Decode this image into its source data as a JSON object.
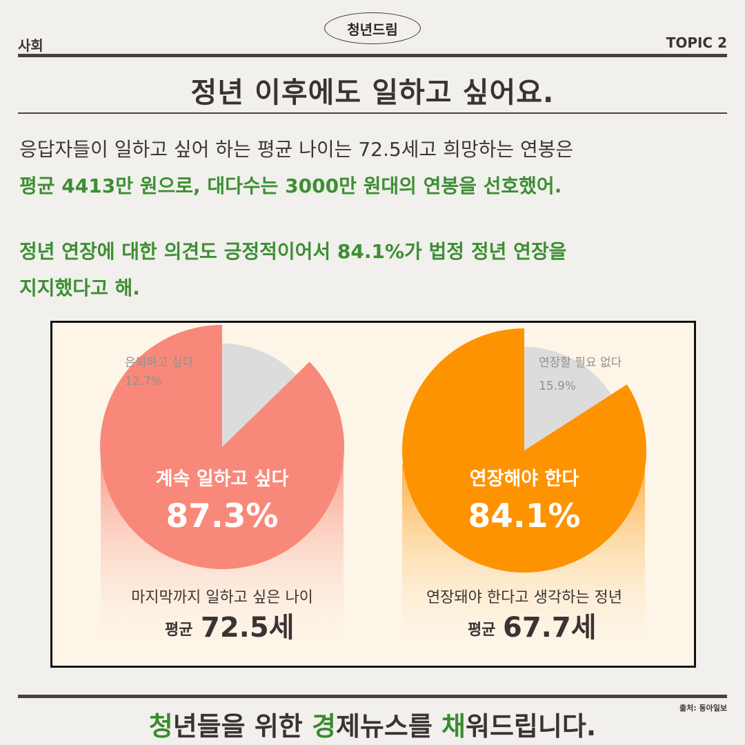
{
  "header": {
    "brand": "청년드림",
    "category": "사회",
    "topic": "TOPIC 2"
  },
  "title": "정년 이후에도 일하고 싶어요.",
  "body": {
    "line1": "응답자들이 일하고 싶어 하는 평균 나이는 72.5세고 희망하는 연봉은",
    "line2": "평균 4413만 원으로, 대다수는 3000만 원대의 연봉을 선호했어.",
    "line3": "정년 연장에 대한 의견도 긍정적이어서 84.1%가 법정 정년 연장을",
    "line4": "지지했다고 해."
  },
  "chart_data": [
    {
      "type": "pie",
      "slices": [
        {
          "label": "계속 일하고 싶다",
          "value": 87.3,
          "value_text": "87.3%",
          "color": "#f8897a"
        },
        {
          "label": "은퇴하고 싶다",
          "value": 12.7,
          "value_text": "12.7%",
          "color": "#dcdcdc"
        }
      ],
      "caption": "마지막까지 일하고 싶은 나이",
      "stat_prefix": "평균",
      "stat_value": "72.5세"
    },
    {
      "type": "pie",
      "slices": [
        {
          "label": "연장해야 한다",
          "value": 84.1,
          "value_text": "84.1%",
          "color": "#fd9300"
        },
        {
          "label": "연장할 필요 없다",
          "value": 15.9,
          "value_text": "15.9%",
          "color": "#dcdcdc"
        }
      ],
      "caption": "연장돼야 한다고 생각하는 정년",
      "stat_prefix": "평균",
      "stat_value": "67.7세"
    }
  ],
  "footer": {
    "parts": [
      {
        "text": "청",
        "highlight": true
      },
      {
        "text": "년들을 위한 ",
        "highlight": false
      },
      {
        "text": "경",
        "highlight": true
      },
      {
        "text": "제뉴스를 ",
        "highlight": false
      },
      {
        "text": "채",
        "highlight": true
      },
      {
        "text": "워드립니다.",
        "highlight": false
      }
    ]
  },
  "source": "출처: 동아일보",
  "colors": {
    "green": "#3d8e34",
    "dark": "#3b3232",
    "salmon": "#f8897a",
    "orange": "#fd9300",
    "grey_slice": "#dcdcdc",
    "panel_bg": "#fdf6e8"
  }
}
